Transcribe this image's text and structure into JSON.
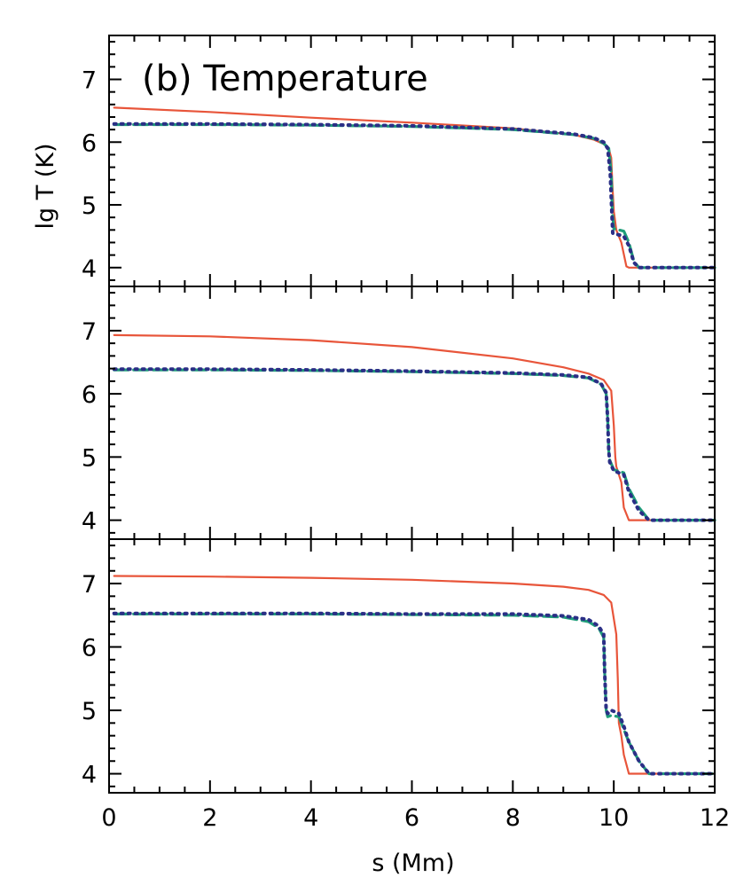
{
  "figure": {
    "title": "(b) Temperature",
    "xlabel": "s (Mm)",
    "ylabel": "lg T (K)"
  },
  "colors": {
    "red": "#e8553a",
    "green": "#1f9e7a",
    "blue": "#2b2f86"
  },
  "chart_data": [
    {
      "type": "line",
      "panel": 1,
      "xlim": [
        0,
        12
      ],
      "ylim": [
        3.7,
        7.7
      ],
      "xticks": [
        0,
        2,
        4,
        6,
        8,
        10,
        12
      ],
      "yticks": [
        4,
        5,
        6,
        7
      ],
      "series": [
        {
          "style": "solid",
          "color": "red",
          "x": [
            0.1,
            2,
            4,
            6,
            8,
            9.2,
            9.6,
            9.8,
            9.9,
            9.95,
            9.97,
            10.0,
            10.05,
            10.15,
            10.25,
            10.3,
            10.5,
            11,
            12
          ],
          "y": [
            6.55,
            6.48,
            6.39,
            6.31,
            6.22,
            6.12,
            6.04,
            5.97,
            5.9,
            5.75,
            5.35,
            4.9,
            4.6,
            4.4,
            4.02,
            4.0,
            4.0,
            4.0,
            4.0
          ]
        },
        {
          "style": "dashed",
          "color": "green",
          "x": [
            0.1,
            2,
            4,
            6,
            8,
            9.2,
            9.6,
            9.8,
            9.9,
            9.95,
            9.97,
            10.0,
            10.2,
            10.3,
            10.4,
            10.5,
            12
          ],
          "y": [
            6.28,
            6.28,
            6.27,
            6.25,
            6.2,
            6.12,
            6.06,
            5.98,
            5.9,
            5.5,
            4.9,
            4.62,
            4.58,
            4.4,
            4.1,
            4.0,
            4.0
          ]
        },
        {
          "style": "dotted",
          "color": "blue",
          "x": [
            0.1,
            2,
            4,
            6,
            8,
            9.2,
            9.6,
            9.8,
            9.88,
            9.93,
            9.96,
            9.98,
            10.2,
            10.3,
            10.4,
            10.5,
            12
          ],
          "y": [
            6.29,
            6.29,
            6.28,
            6.26,
            6.21,
            6.13,
            6.07,
            6.0,
            5.9,
            5.5,
            4.9,
            4.55,
            4.5,
            4.35,
            4.08,
            4.0,
            4.0
          ]
        }
      ]
    },
    {
      "type": "line",
      "panel": 2,
      "xlim": [
        0,
        12
      ],
      "ylim": [
        3.7,
        7.7
      ],
      "xticks": [
        0,
        2,
        4,
        6,
        8,
        10,
        12
      ],
      "yticks": [
        4,
        5,
        6,
        7
      ],
      "series": [
        {
          "style": "solid",
          "color": "red",
          "x": [
            0.1,
            2,
            4,
            6,
            8,
            9,
            9.5,
            9.8,
            9.95,
            10.0,
            10.03,
            10.05,
            10.15,
            10.2,
            10.3,
            10.5,
            11,
            12
          ],
          "y": [
            6.93,
            6.91,
            6.85,
            6.74,
            6.56,
            6.42,
            6.32,
            6.22,
            6.05,
            5.5,
            5.0,
            4.85,
            4.6,
            4.2,
            4.0,
            4.0,
            4.0,
            4.0
          ]
        },
        {
          "style": "dashed",
          "color": "green",
          "x": [
            0.1,
            2,
            4,
            6,
            8,
            9,
            9.5,
            9.75,
            9.85,
            9.88,
            9.9,
            9.92,
            10.0,
            10.2,
            10.3,
            10.5,
            10.7,
            11,
            12
          ],
          "y": [
            6.38,
            6.38,
            6.37,
            6.35,
            6.32,
            6.29,
            6.25,
            6.15,
            6.0,
            5.6,
            5.1,
            4.95,
            4.8,
            4.75,
            4.5,
            4.2,
            4.0,
            4.0,
            4.0
          ]
        },
        {
          "style": "dotted",
          "color": "blue",
          "x": [
            0.1,
            2,
            4,
            6,
            8,
            9,
            9.5,
            9.75,
            9.85,
            9.88,
            9.9,
            9.92,
            10.0,
            10.2,
            10.3,
            10.5,
            10.7,
            11,
            12
          ],
          "y": [
            6.39,
            6.39,
            6.38,
            6.36,
            6.33,
            6.3,
            6.26,
            6.16,
            6.02,
            5.6,
            5.1,
            4.92,
            4.78,
            4.72,
            4.45,
            4.15,
            4.0,
            4.0,
            4.0
          ]
        }
      ]
    },
    {
      "type": "line",
      "panel": 3,
      "xlim": [
        0,
        12
      ],
      "ylim": [
        3.7,
        7.7
      ],
      "xticks": [
        0,
        2,
        4,
        6,
        8,
        10,
        12
      ],
      "yticks": [
        4,
        5,
        6,
        7
      ],
      "series": [
        {
          "style": "solid",
          "color": "red",
          "x": [
            0.1,
            2,
            4,
            6,
            8,
            9,
            9.5,
            9.8,
            9.95,
            10.05,
            10.08,
            10.1,
            10.15,
            10.2,
            10.3,
            10.5,
            11,
            12
          ],
          "y": [
            7.12,
            7.11,
            7.09,
            7.06,
            7.0,
            6.95,
            6.9,
            6.82,
            6.7,
            6.2,
            5.5,
            4.8,
            4.6,
            4.3,
            4.0,
            4.0,
            4.0,
            4.0
          ]
        },
        {
          "style": "dashed",
          "color": "green",
          "x": [
            0.1,
            2,
            4,
            6,
            8,
            9,
            9.5,
            9.7,
            9.8,
            9.82,
            9.85,
            9.88,
            9.95,
            10.1,
            10.2,
            10.3,
            10.5,
            10.7,
            11,
            12
          ],
          "y": [
            6.52,
            6.52,
            6.52,
            6.51,
            6.5,
            6.47,
            6.4,
            6.3,
            6.15,
            5.6,
            5.0,
            4.9,
            4.92,
            4.9,
            4.7,
            4.5,
            4.2,
            4.0,
            4.0,
            4.0
          ]
        },
        {
          "style": "dotted",
          "color": "blue",
          "x": [
            0.1,
            2,
            4,
            6,
            8,
            9,
            9.5,
            9.7,
            9.8,
            9.82,
            9.85,
            9.88,
            9.95,
            10.1,
            10.2,
            10.3,
            10.5,
            10.7,
            11,
            12
          ],
          "y": [
            6.53,
            6.53,
            6.53,
            6.52,
            6.52,
            6.49,
            6.43,
            6.33,
            6.2,
            5.6,
            5.0,
            4.95,
            5.0,
            4.95,
            4.75,
            4.5,
            4.2,
            4.0,
            4.0,
            4.0
          ]
        }
      ]
    }
  ]
}
